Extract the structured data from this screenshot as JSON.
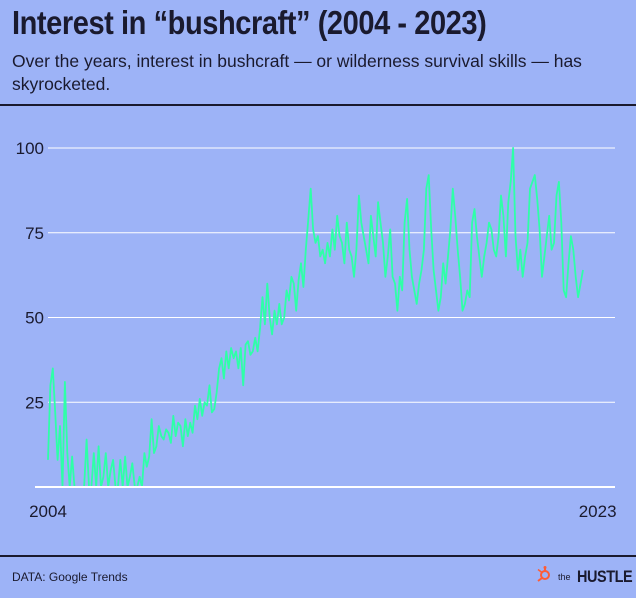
{
  "header": {
    "title": "Interest in “bushcraft” (2004 - 2023)",
    "subtitle": "Over the years, interest in bushcraft — or wilderness survival skills — has skyrocketed."
  },
  "footer": {
    "source": "DATA: Google Trends",
    "brand_small": "the",
    "brand_big": "HUSTLE"
  },
  "colors": {
    "background": "#9db3f7",
    "line": "#2effa8",
    "grid": "#ffffff",
    "logo": "#ff5c35"
  },
  "icons": {
    "brand": "hubspot-sprocket-icon"
  },
  "chart_data": {
    "type": "line",
    "title": "Interest in “bushcraft” (2004 - 2023)",
    "xlabel": "",
    "ylabel": "",
    "x_range": [
      2004,
      2023.6
    ],
    "x_tick_labels": [
      {
        "value": 2004,
        "label": "2004"
      },
      {
        "value": 2023,
        "label": "2023"
      }
    ],
    "ylim": [
      0,
      100
    ],
    "y_ticks": [
      25,
      50,
      75,
      100
    ],
    "grid": true,
    "series": [
      {
        "x_start": 2004,
        "x_step": 0.0833,
        "values": [
          8,
          30,
          35,
          22,
          8,
          18,
          0,
          31,
          10,
          0,
          9,
          0,
          0,
          0,
          0,
          0,
          14,
          0,
          0,
          10,
          0,
          12,
          0,
          3,
          10,
          0,
          5,
          8,
          0,
          0,
          8,
          0,
          9,
          0,
          3,
          7,
          0,
          0,
          3,
          0,
          10,
          6,
          9,
          20,
          10,
          12,
          18,
          15,
          14,
          17,
          16,
          13,
          21,
          15,
          19,
          18,
          12,
          20,
          15,
          19,
          16,
          24,
          20,
          26,
          21,
          25,
          24,
          30,
          22,
          23,
          28,
          35,
          38,
          32,
          40,
          35,
          41,
          38,
          40,
          35,
          41,
          30,
          42,
          43,
          39,
          40,
          44,
          40,
          47,
          56,
          48,
          60,
          50,
          45,
          52,
          48,
          54,
          48,
          50,
          58,
          55,
          62,
          60,
          52,
          61,
          66,
          59,
          70,
          79,
          88,
          76,
          72,
          74,
          68,
          70,
          66,
          72,
          68,
          76,
          70,
          80,
          74,
          72,
          66,
          78,
          70,
          68,
          62,
          70,
          86,
          78,
          74,
          70,
          66,
          80,
          74,
          68,
          84,
          78,
          72,
          62,
          68,
          76,
          62,
          60,
          52,
          62,
          58,
          78,
          85,
          70,
          62,
          58,
          54,
          60,
          64,
          70,
          88,
          92,
          76,
          64,
          58,
          52,
          56,
          66,
          60,
          68,
          76,
          88,
          80,
          70,
          62,
          52,
          54,
          58,
          56,
          78,
          82,
          74,
          68,
          62,
          68,
          72,
          78,
          76,
          70,
          68,
          74,
          86,
          80,
          68,
          84,
          90,
          100,
          74,
          64,
          70,
          62,
          68,
          72,
          88,
          90,
          92,
          85,
          76,
          62,
          68,
          74,
          80,
          70,
          72,
          86,
          90,
          78,
          58,
          56,
          66,
          74,
          70,
          62,
          56,
          60,
          64
        ],
        "color": "#2effa8"
      }
    ]
  }
}
